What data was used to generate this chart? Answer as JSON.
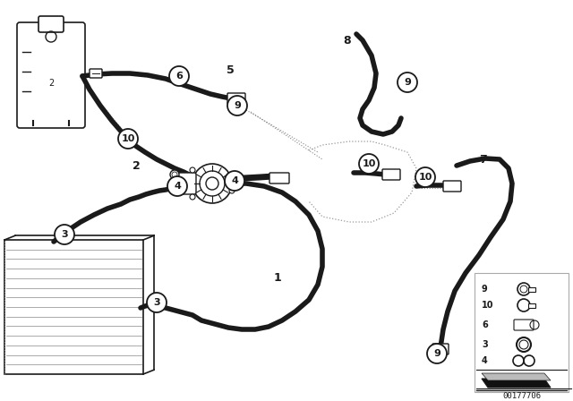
{
  "bg_color": "#ffffff",
  "diagram_id": "00177706",
  "line_color": "#1a1a1a",
  "hose_lw": 4.0,
  "thin_lw": 1.2
}
